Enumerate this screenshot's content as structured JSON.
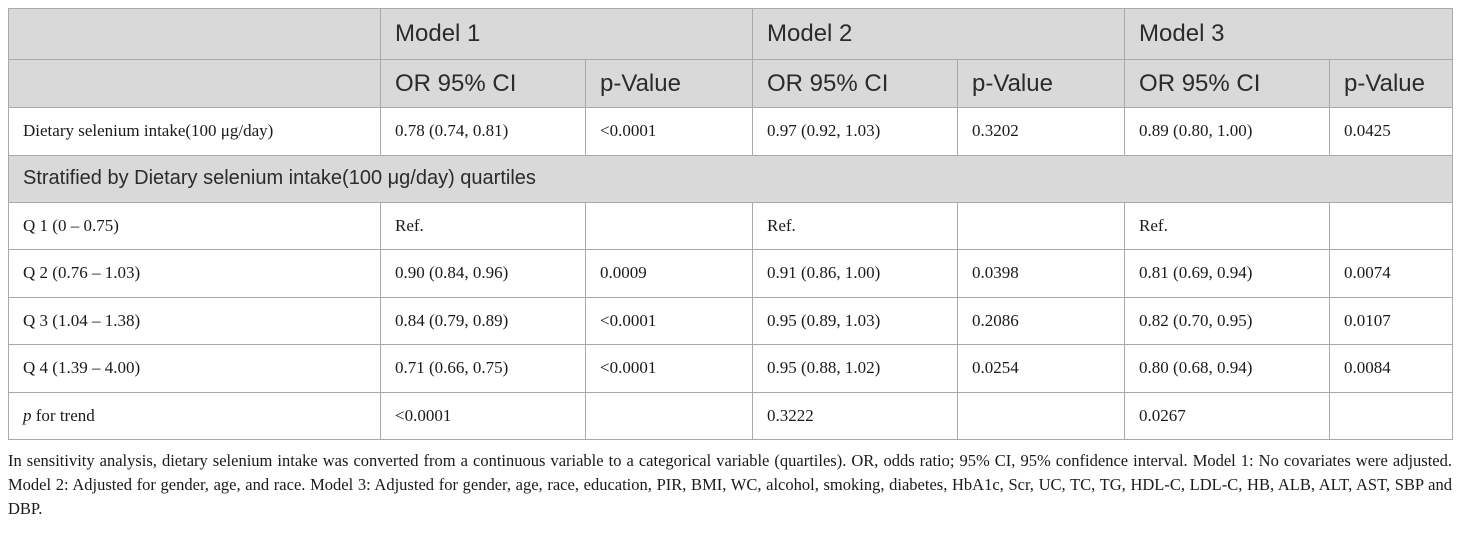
{
  "header": {
    "models": [
      "Model 1",
      "Model 2",
      "Model 3"
    ],
    "subheaders": [
      "OR 95% CI",
      "p-Value",
      "OR 95% CI",
      "p-Value",
      "OR 95% CI",
      "p-Value"
    ]
  },
  "continuous_row": {
    "label": "Dietary selenium intake(100 μg/day)",
    "cells": [
      "0.78 (0.74, 0.81)",
      "<0.0001",
      "0.97 (0.92, 1.03)",
      "0.3202",
      "0.89 (0.80, 1.00)",
      "0.0425"
    ]
  },
  "stratified_label": "Stratified by Dietary selenium intake(100 μg/day) quartiles",
  "quartile_rows": [
    {
      "label": "Q 1 (0 – 0.75)",
      "cells": [
        "Ref.",
        "",
        "Ref.",
        "",
        "Ref.",
        ""
      ]
    },
    {
      "label": "Q 2 (0.76 – 1.03)",
      "cells": [
        "0.90 (0.84, 0.96)",
        "0.0009",
        "0.91 (0.86, 1.00)",
        "0.0398",
        "0.81 (0.69, 0.94)",
        "0.0074"
      ]
    },
    {
      "label": "Q 3 (1.04 – 1.38)",
      "cells": [
        "0.84 (0.79, 0.89)",
        "<0.0001",
        "0.95 (0.89, 1.03)",
        "0.2086",
        "0.82 (0.70, 0.95)",
        "0.0107"
      ]
    },
    {
      "label": "Q 4 (1.39 – 4.00)",
      "cells": [
        "0.71 (0.66, 0.75)",
        "<0.0001",
        "0.95 (0.88, 1.02)",
        "0.0254",
        "0.80 (0.68, 0.94)",
        "0.0084"
      ]
    }
  ],
  "trend_row": {
    "label_italic": "p",
    "label_rest": " for trend",
    "cells": [
      "<0.0001",
      "",
      "0.3222",
      "",
      "0.0267",
      ""
    ]
  },
  "footnote": "In sensitivity analysis, dietary selenium intake was converted from a continuous variable to a categorical variable (quartiles). OR, odds ratio; 95% CI, 95% confidence interval. Model 1: No covariates were adjusted. Model 2: Adjusted for gender, age, and race. Model 3: Adjusted for gender, age, race, education, PIR, BMI, WC, alcohol, smoking, diabetes, HbA1c, Scr, UC, TC, TG, HDL-C, LDL-C, HB, ALB, ALT, AST, SBP and DBP."
}
